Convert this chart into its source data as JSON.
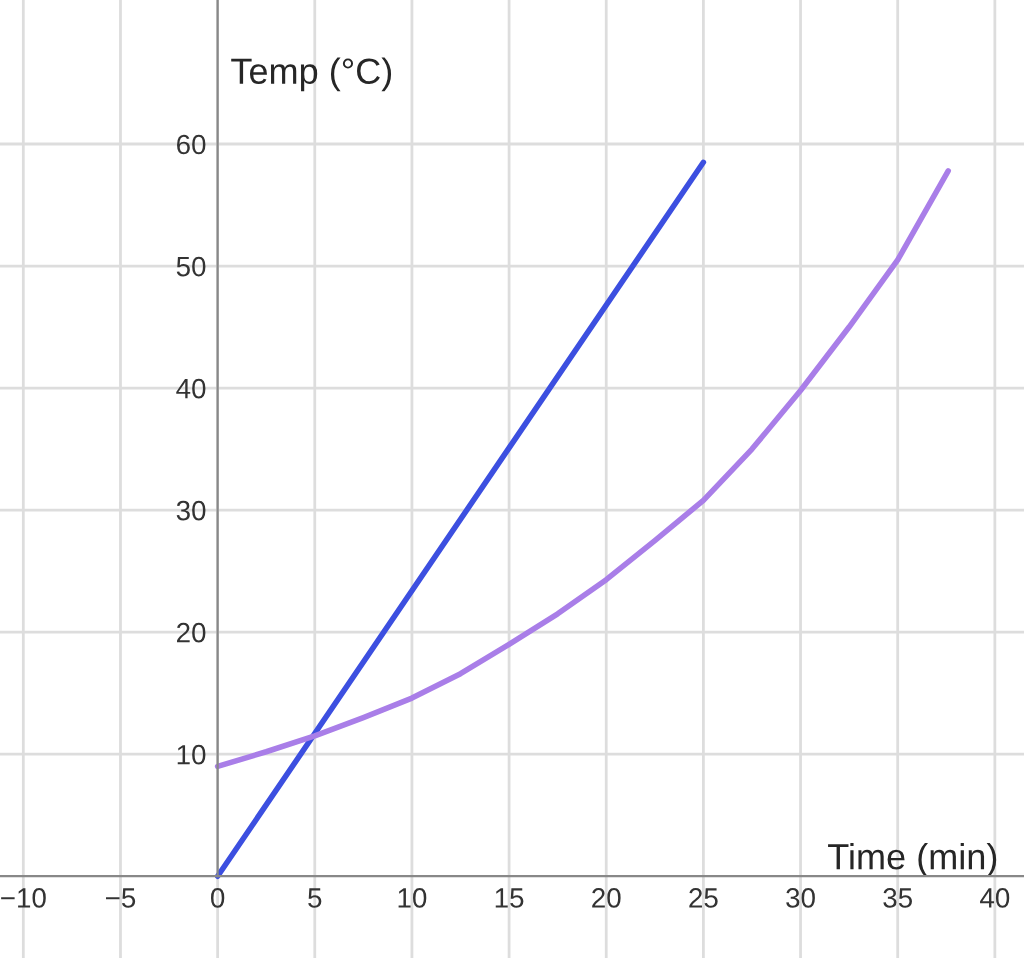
{
  "chart_data": {
    "type": "line",
    "xlabel": "Time (min)",
    "ylabel": "Temp (°C)",
    "series": [
      {
        "color": "#3c4fe0",
        "x": [
          0,
          25
        ],
        "values": [
          0,
          58.5
        ]
      },
      {
        "color": "#a97ee8",
        "x": [
          0,
          2.5,
          5,
          7.5,
          10,
          12.5,
          15,
          17.5,
          20,
          22.5,
          25,
          27.5,
          30,
          32.5,
          35,
          37.6
        ],
        "values": [
          9,
          10.2,
          11.5,
          13,
          14.6,
          16.6,
          19,
          21.5,
          24.3,
          27.5,
          30.8,
          35,
          39.8,
          45,
          50.5,
          57.8
        ]
      }
    ],
    "xlim": [
      -11.2,
      41.5
    ],
    "ylim": [
      -6.7,
      71.8
    ],
    "xticks": [
      {
        "value": -10,
        "label": "−10"
      },
      {
        "value": -5,
        "label": "−5"
      },
      0,
      5,
      10,
      15,
      20,
      25,
      30,
      35,
      40
    ],
    "yticks": [
      10,
      20,
      30,
      40,
      50,
      60
    ],
    "grid": true,
    "line_style": "solid",
    "marker": "none"
  }
}
